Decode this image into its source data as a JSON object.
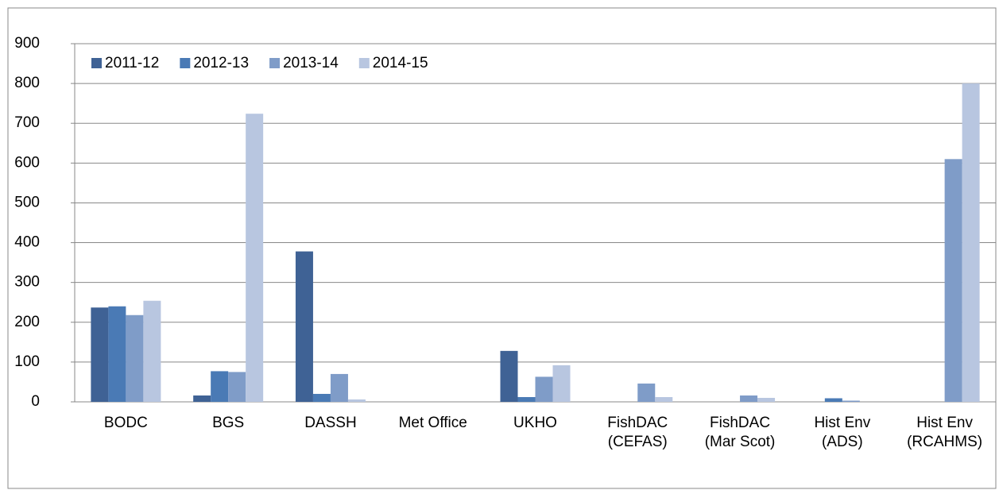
{
  "chart_data": {
    "type": "bar",
    "categories": [
      "BODC",
      "BGS",
      "DASSH",
      "Met Office",
      "UKHO",
      "FishDAC (CEFAS)",
      "FishDAC (Mar Scot)",
      "Hist Env (ADS)",
      "Hist Env (RCAHMS)"
    ],
    "series": [
      {
        "name": "2011-12",
        "color": "#3f6295",
        "values": [
          237,
          16,
          378,
          0,
          128,
          0,
          0,
          0,
          0
        ]
      },
      {
        "name": "2012-13",
        "color": "#4a7ab5",
        "values": [
          240,
          77,
          20,
          0,
          12,
          0,
          0,
          9,
          0
        ]
      },
      {
        "name": "2013-14",
        "color": "#7f9cc8",
        "values": [
          218,
          75,
          70,
          0,
          63,
          46,
          16,
          3,
          610
        ]
      },
      {
        "name": "2014-15",
        "color": "#b8c6e0",
        "values": [
          254,
          724,
          6,
          0,
          92,
          12,
          10,
          0,
          800
        ]
      }
    ],
    "ylim": [
      0,
      900
    ],
    "yticks": [
      0,
      100,
      200,
      300,
      400,
      500,
      600,
      700,
      800,
      900
    ],
    "grid": true,
    "legend": "top-left"
  }
}
